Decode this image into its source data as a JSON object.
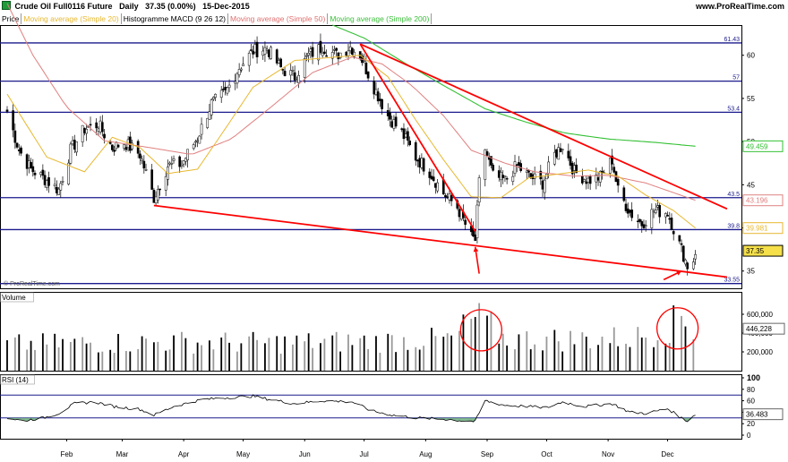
{
  "header": {
    "instrument": "Crude Oil Full0116 Future",
    "timeframe": "Daily",
    "last": "37.35 (0.00%)",
    "date": "15-Dec-2015",
    "site": "www.ProRealTime.com"
  },
  "legend": [
    {
      "label": "Price",
      "color": "#000000"
    },
    {
      "label": "Moving average (Simple 20)",
      "color": "#e8b830"
    },
    {
      "label": "Histogramme MACD (9 26 12)",
      "color": "#000000"
    },
    {
      "label": "Moving average (Simple 50)",
      "color": "#e07070"
    },
    {
      "label": "Moving average (Simple 200)",
      "color": "#3cc03c"
    }
  ],
  "watermark": "© ProRealTime.com",
  "colors": {
    "ma20": "#e8b830",
    "ma50": "#e08080",
    "ma200": "#33c033",
    "hline": "#1a1a8c",
    "trend": "#ff0000",
    "rsi_band": "#1a1a8c",
    "rsi_fill": "#66aa77"
  },
  "chart_data": [
    {
      "type": "candlestick",
      "panel": "price",
      "ylim": [
        33,
        63.5
      ],
      "yticks": [
        35,
        40,
        45,
        50,
        55,
        60
      ],
      "xticks": [
        "Feb",
        "Mar",
        "Apr",
        "May",
        "Jun",
        "Jul",
        "Aug",
        "Sep",
        "Oct",
        "Nov",
        "Dec"
      ],
      "x_range": [
        "2015-01-02",
        "2015-12-15"
      ],
      "horizontal_levels": [
        {
          "value": 61.43,
          "label": "61.43"
        },
        {
          "value": 57,
          "label": "57"
        },
        {
          "value": 53.4,
          "label": "53.4"
        },
        {
          "value": 43.5,
          "label": "43.5"
        },
        {
          "value": 39.8,
          "label": "39.8"
        },
        {
          "value": 33.55,
          "label": "33.55"
        }
      ],
      "value_tags": [
        {
          "value": 49.459,
          "label": "49.459",
          "series": "ma200"
        },
        {
          "value": 43.196,
          "label": "43.196",
          "series": "ma50"
        },
        {
          "value": 39.981,
          "label": "39.981",
          "series": "ma20"
        },
        {
          "value": 37.35,
          "label": "37.35",
          "series": "price"
        }
      ],
      "trendlines": [
        {
          "from": [
            "2015-06-29",
            61.3
          ],
          "to": [
            "2015-12-31",
            42.2
          ]
        },
        {
          "from": [
            "2015-06-29",
            61.3
          ],
          "to": [
            "2015-08-26",
            39.6
          ]
        },
        {
          "from": [
            "2015-03-17",
            42.6
          ],
          "to": [
            "2015-12-31",
            34.3
          ]
        }
      ],
      "annotation_arrows": [
        {
          "tip": [
            "2015-08-26",
            37.8
          ],
          "tail": [
            "2015-08-28",
            34.7
          ]
        },
        {
          "tip": [
            "2015-12-08",
            35.0
          ],
          "tail": [
            "2015-11-29",
            34.0
          ]
        }
      ],
      "anchors": [
        [
          "2015-01-02",
          53.5
        ],
        [
          "2015-01-08",
          49.0
        ],
        [
          "2015-01-14",
          46.8
        ],
        [
          "2015-01-22",
          45.5
        ],
        [
          "2015-01-28",
          44.4
        ],
        [
          "2015-02-03",
          49.0
        ],
        [
          "2015-02-10",
          51.5
        ],
        [
          "2015-02-17",
          52.0
        ],
        [
          "2015-02-24",
          49.3
        ],
        [
          "2015-03-02",
          49.9
        ],
        [
          "2015-03-10",
          48.5
        ],
        [
          "2015-03-17",
          43.5
        ],
        [
          "2015-03-24",
          47.2
        ],
        [
          "2015-03-31",
          47.4
        ],
        [
          "2015-04-08",
          50.5
        ],
        [
          "2015-04-15",
          54.4
        ],
        [
          "2015-04-22",
          55.6
        ],
        [
          "2015-04-29",
          58.6
        ],
        [
          "2015-05-06",
          60.5
        ],
        [
          "2015-05-13",
          60.8
        ],
        [
          "2015-05-20",
          58.5
        ],
        [
          "2015-05-27",
          57.5
        ],
        [
          "2015-06-03",
          60.0
        ],
        [
          "2015-06-10",
          61.0
        ],
        [
          "2015-06-17",
          60.0
        ],
        [
          "2015-06-24",
          61.0
        ],
        [
          "2015-06-29",
          60.0
        ],
        [
          "2015-07-06",
          56.3
        ],
        [
          "2015-07-13",
          53.0
        ],
        [
          "2015-07-20",
          51.0
        ],
        [
          "2015-07-27",
          48.2
        ],
        [
          "2015-08-03",
          46.5
        ],
        [
          "2015-08-10",
          44.0
        ],
        [
          "2015-08-17",
          42.4
        ],
        [
          "2015-08-24",
          38.9
        ],
        [
          "2015-08-26",
          38.6
        ],
        [
          "2015-08-28",
          45.2
        ],
        [
          "2015-08-31",
          49.2
        ],
        [
          "2015-09-04",
          46.0
        ],
        [
          "2015-09-10",
          45.5
        ],
        [
          "2015-09-16",
          47.2
        ],
        [
          "2015-09-22",
          46.0
        ],
        [
          "2015-09-29",
          45.2
        ],
        [
          "2015-10-05",
          48.5
        ],
        [
          "2015-10-09",
          49.6
        ],
        [
          "2015-10-15",
          46.5
        ],
        [
          "2015-10-22",
          45.5
        ],
        [
          "2015-10-28",
          45.9
        ],
        [
          "2015-11-03",
          47.9
        ],
        [
          "2015-11-06",
          44.3
        ],
        [
          "2015-11-12",
          41.8
        ],
        [
          "2015-11-18",
          40.5
        ],
        [
          "2015-11-24",
          42.0
        ],
        [
          "2015-12-01",
          41.8
        ],
        [
          "2015-12-04",
          39.9
        ],
        [
          "2015-12-08",
          37.5
        ],
        [
          "2015-12-11",
          35.6
        ],
        [
          "2015-12-14",
          36.3
        ],
        [
          "2015-12-15",
          37.35
        ]
      ],
      "ma20": [
        [
          "2015-01-02",
          55.5
        ],
        [
          "2015-01-22",
          48.2
        ],
        [
          "2015-02-10",
          46.5
        ],
        [
          "2015-02-24",
          50.5
        ],
        [
          "2015-03-10",
          49.3
        ],
        [
          "2015-03-24",
          46.3
        ],
        [
          "2015-04-08",
          46.8
        ],
        [
          "2015-04-22",
          51.5
        ],
        [
          "2015-05-06",
          56.3
        ],
        [
          "2015-05-27",
          59.4
        ],
        [
          "2015-06-17",
          59.8
        ],
        [
          "2015-06-29",
          60.0
        ],
        [
          "2015-07-13",
          57.5
        ],
        [
          "2015-07-27",
          52.5
        ],
        [
          "2015-08-10",
          47.9
        ],
        [
          "2015-08-24",
          43.6
        ],
        [
          "2015-09-08",
          43.5
        ],
        [
          "2015-09-22",
          45.8
        ],
        [
          "2015-10-09",
          46.3
        ],
        [
          "2015-10-22",
          46.7
        ],
        [
          "2015-11-06",
          46.0
        ],
        [
          "2015-11-20",
          43.8
        ],
        [
          "2015-12-04",
          42.0
        ],
        [
          "2015-12-15",
          39.98
        ]
      ],
      "ma50": [
        [
          "2015-01-02",
          66.0
        ],
        [
          "2015-01-15",
          60.0
        ],
        [
          "2015-02-01",
          54.0
        ],
        [
          "2015-02-20",
          50.1
        ],
        [
          "2015-03-15",
          49.3
        ],
        [
          "2015-04-05",
          48.5
        ],
        [
          "2015-04-25",
          50.3
        ],
        [
          "2015-05-15",
          54.0
        ],
        [
          "2015-06-05",
          58.0
        ],
        [
          "2015-06-25",
          59.8
        ],
        [
          "2015-07-10",
          59.0
        ],
        [
          "2015-07-25",
          56.5
        ],
        [
          "2015-08-10",
          53.0
        ],
        [
          "2015-08-24",
          49.0
        ],
        [
          "2015-09-10",
          47.5
        ],
        [
          "2015-09-25",
          46.5
        ],
        [
          "2015-10-15",
          46.0
        ],
        [
          "2015-11-01",
          46.1
        ],
        [
          "2015-11-20",
          45.2
        ],
        [
          "2015-12-15",
          43.2
        ]
      ],
      "ma200": [
        [
          "2015-06-15",
          63.5
        ],
        [
          "2015-07-01",
          62.0
        ],
        [
          "2015-07-20",
          59.3
        ],
        [
          "2015-08-10",
          56.5
        ],
        [
          "2015-08-31",
          53.8
        ],
        [
          "2015-09-20",
          52.3
        ],
        [
          "2015-10-10",
          51.0
        ],
        [
          "2015-11-01",
          50.3
        ],
        [
          "2015-11-25",
          49.9
        ],
        [
          "2015-12-15",
          49.46
        ]
      ]
    },
    {
      "type": "bar",
      "panel": "volume",
      "title": "Volume",
      "ylim": [
        0,
        800000
      ],
      "yticks": [
        200000,
        400000,
        600000
      ],
      "ytick_labels": [
        "200,000",
        "400,000",
        "600,000"
      ],
      "last_value": 446228,
      "last_label": "446,228",
      "profile": [
        [
          "2015-01-02",
          300000
        ],
        [
          "2015-02-15",
          320000
        ],
        [
          "2015-04-01",
          330000
        ],
        [
          "2015-05-15",
          320000
        ],
        [
          "2015-07-10",
          340000
        ],
        [
          "2015-08-15",
          360000
        ],
        [
          "2015-08-25",
          600000
        ],
        [
          "2015-08-31",
          550000
        ],
        [
          "2015-09-10",
          360000
        ],
        [
          "2015-10-15",
          360000
        ],
        [
          "2015-11-15",
          380000
        ],
        [
          "2015-12-03",
          520000
        ],
        [
          "2015-12-08",
          620000
        ],
        [
          "2015-12-15",
          446228
        ]
      ],
      "annotation_circles": [
        {
          "center": [
            "2015-08-29",
            430000
          ]
        },
        {
          "center": [
            "2015-12-06",
            450000
          ]
        }
      ]
    },
    {
      "type": "line",
      "panel": "rsi",
      "title": "RSI (14)",
      "ylim": [
        0,
        100
      ],
      "yticks": [
        0,
        20,
        40,
        60,
        80,
        100
      ],
      "levels": [
        70,
        30
      ],
      "last_value": 36.483,
      "last_label": "36.483",
      "anchors": [
        [
          "2015-01-02",
          30
        ],
        [
          "2015-01-10",
          25
        ],
        [
          "2015-01-20",
          30
        ],
        [
          "2015-01-28",
          38
        ],
        [
          "2015-02-05",
          55
        ],
        [
          "2015-02-15",
          58
        ],
        [
          "2015-02-25",
          50
        ],
        [
          "2015-03-10",
          45
        ],
        [
          "2015-03-17",
          35
        ],
        [
          "2015-03-27",
          50
        ],
        [
          "2015-04-10",
          62
        ],
        [
          "2015-04-25",
          66
        ],
        [
          "2015-05-06",
          68
        ],
        [
          "2015-05-15",
          62
        ],
        [
          "2015-05-27",
          55
        ],
        [
          "2015-06-10",
          60
        ],
        [
          "2015-06-25",
          58
        ],
        [
          "2015-07-05",
          42
        ],
        [
          "2015-07-15",
          35
        ],
        [
          "2015-07-28",
          30
        ],
        [
          "2015-08-10",
          28
        ],
        [
          "2015-08-20",
          25
        ],
        [
          "2015-08-26",
          24
        ],
        [
          "2015-08-31",
          60
        ],
        [
          "2015-09-10",
          52
        ],
        [
          "2015-09-22",
          50
        ],
        [
          "2015-10-01",
          48
        ],
        [
          "2015-10-09",
          58
        ],
        [
          "2015-10-20",
          50
        ],
        [
          "2015-11-03",
          55
        ],
        [
          "2015-11-12",
          40
        ],
        [
          "2015-11-20",
          38
        ],
        [
          "2015-12-01",
          46
        ],
        [
          "2015-12-08",
          30
        ],
        [
          "2015-12-11",
          25
        ],
        [
          "2015-12-15",
          36.5
        ]
      ]
    }
  ]
}
